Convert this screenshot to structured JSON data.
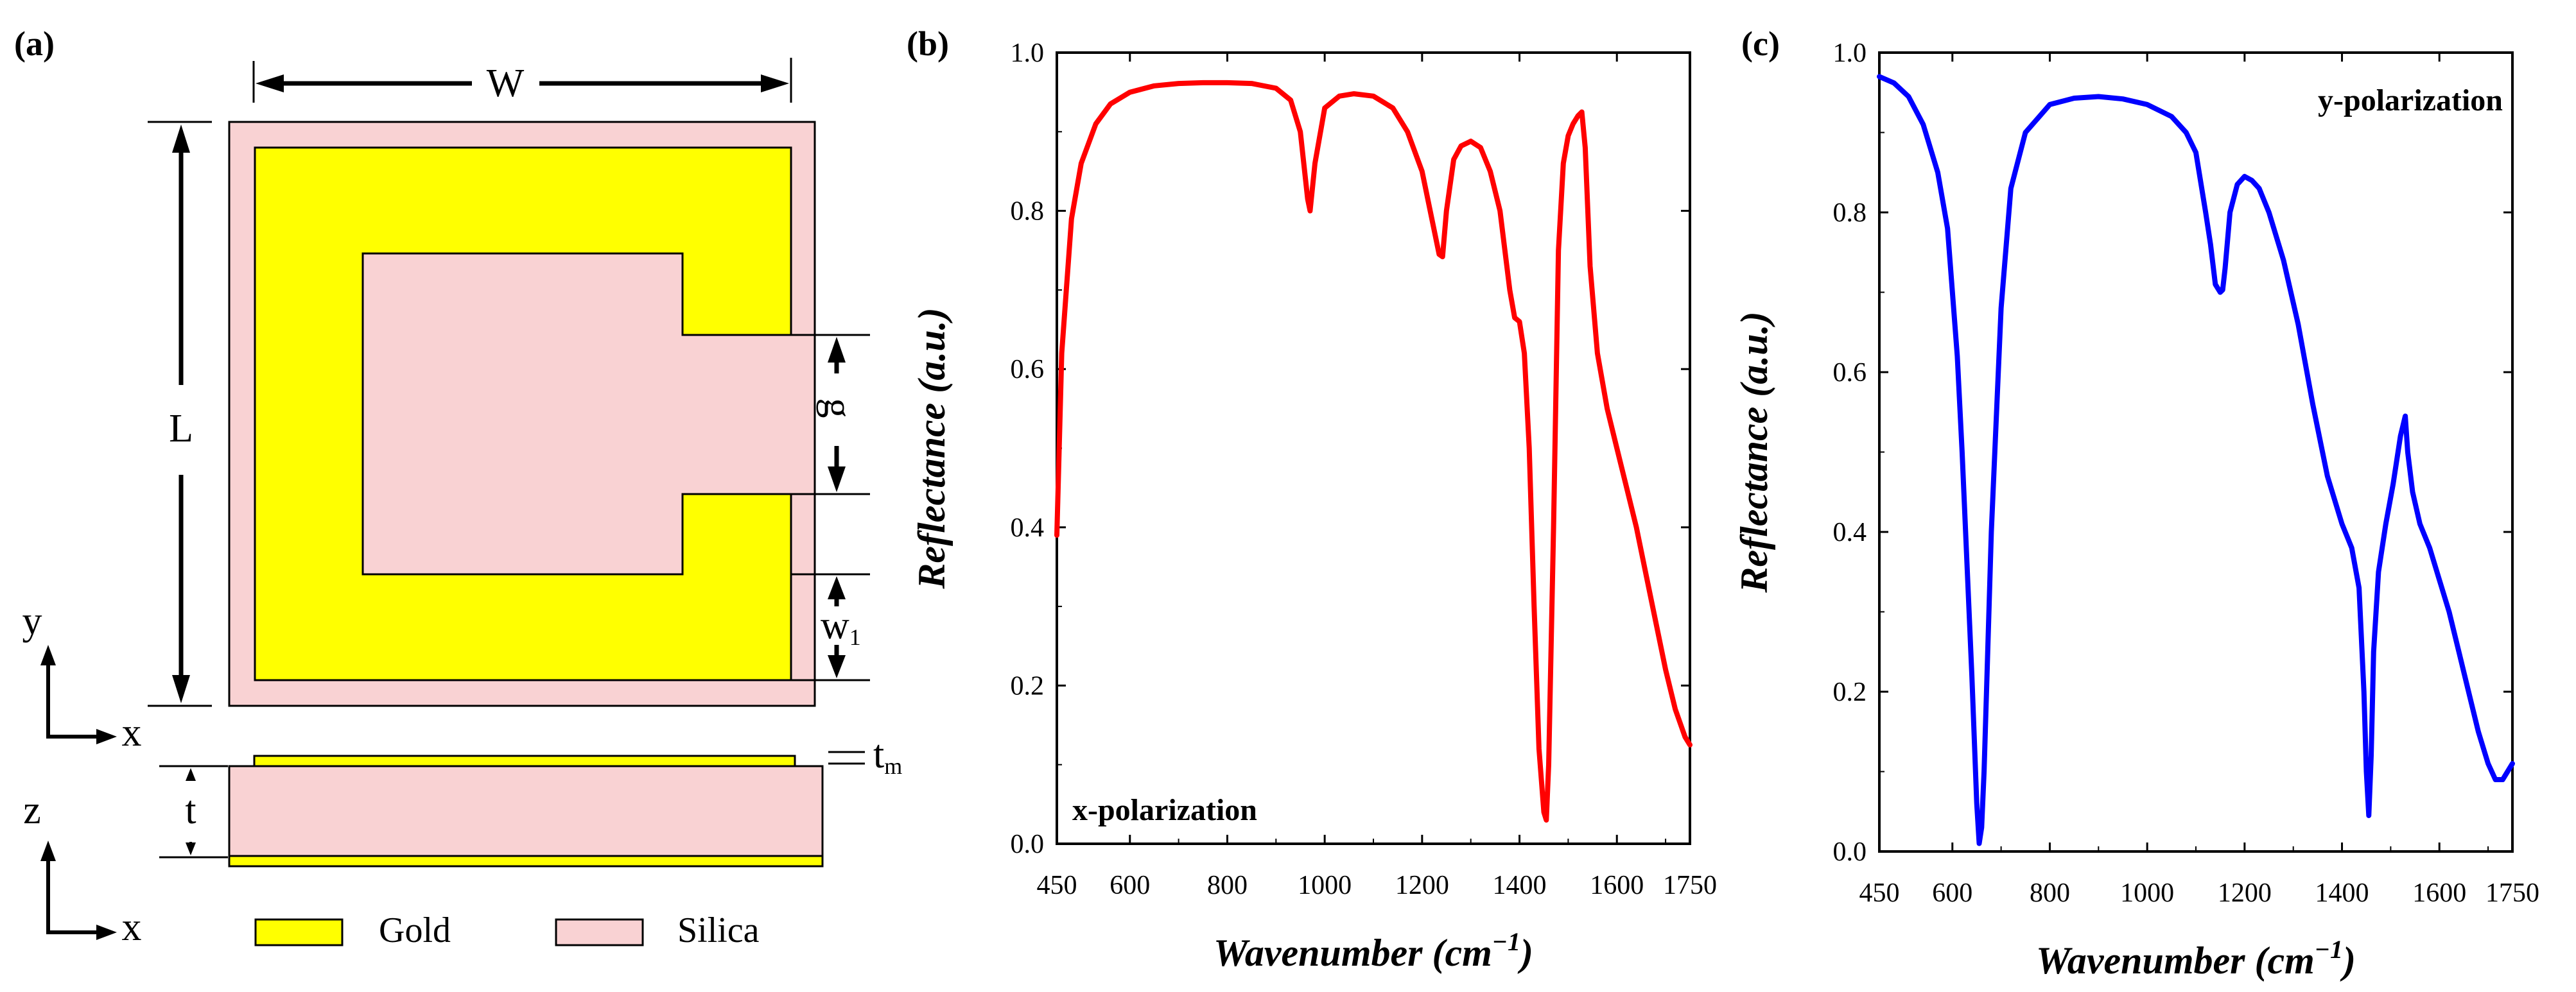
{
  "panel_a": {
    "label": "(a)",
    "dims": {
      "W": "W",
      "L": "L",
      "g": "g",
      "w1_base": "w",
      "w1_sub": "1",
      "t": "t",
      "tm_base": "t",
      "tm_sub": "m"
    },
    "axes_top": {
      "y": "y",
      "x": "x"
    },
    "axes_bottom": {
      "z": "z",
      "x": "x"
    },
    "legend": [
      {
        "label": "Gold",
        "color": "#FFFF00"
      },
      {
        "label": "Silica",
        "color": "#F9D2D3"
      }
    ]
  },
  "chart_data": [
    {
      "panel_label": "(b)",
      "type": "line",
      "polarization_label": "x-polarization",
      "xlabel_text": "Wavenumber (cm",
      "xlabel_sup": "−1",
      "xlabel_close": ")",
      "ylabel": "Reflectance (a.u.)",
      "xlim": [
        450,
        1750
      ],
      "ylim": [
        0,
        1.0
      ],
      "xticks": [
        450,
        600,
        800,
        1000,
        1200,
        1400,
        1600,
        1750
      ],
      "yticks": [
        "0.0",
        "0.2",
        "0.4",
        "0.6",
        "0.8",
        "1.0"
      ],
      "series": [
        {
          "name": "x-polarization",
          "color": "#FF0000",
          "x": [
            450,
            460,
            480,
            500,
            530,
            560,
            600,
            650,
            700,
            750,
            800,
            850,
            900,
            930,
            950,
            965,
            970,
            980,
            1000,
            1030,
            1060,
            1100,
            1140,
            1170,
            1200,
            1220,
            1235,
            1242,
            1250,
            1265,
            1280,
            1300,
            1320,
            1340,
            1360,
            1380,
            1390,
            1400,
            1410,
            1420,
            1430,
            1440,
            1450,
            1455,
            1460,
            1470,
            1480,
            1490,
            1500,
            1510,
            1520,
            1528,
            1535,
            1545,
            1560,
            1580,
            1600,
            1620,
            1640,
            1660,
            1680,
            1700,
            1720,
            1740,
            1750
          ],
          "y": [
            0.39,
            0.62,
            0.79,
            0.86,
            0.91,
            0.935,
            0.95,
            0.958,
            0.961,
            0.962,
            0.962,
            0.961,
            0.955,
            0.94,
            0.9,
            0.815,
            0.8,
            0.86,
            0.93,
            0.945,
            0.948,
            0.945,
            0.93,
            0.9,
            0.85,
            0.79,
            0.745,
            0.742,
            0.8,
            0.865,
            0.882,
            0.888,
            0.88,
            0.85,
            0.8,
            0.7,
            0.665,
            0.66,
            0.62,
            0.5,
            0.3,
            0.12,
            0.04,
            0.03,
            0.1,
            0.4,
            0.75,
            0.86,
            0.895,
            0.91,
            0.92,
            0.925,
            0.88,
            0.73,
            0.62,
            0.55,
            0.5,
            0.45,
            0.4,
            0.34,
            0.28,
            0.22,
            0.17,
            0.135,
            0.125
          ]
        }
      ]
    },
    {
      "panel_label": "(c)",
      "type": "line",
      "polarization_label": "y-polarization",
      "xlabel_text": "Wavenumber (cm",
      "xlabel_sup": "−1",
      "xlabel_close": ")",
      "ylabel": "Reflectance (a.u.)",
      "xlim": [
        450,
        1750
      ],
      "ylim": [
        0,
        1.0
      ],
      "xticks": [
        450,
        600,
        800,
        1000,
        1200,
        1400,
        1600,
        1750
      ],
      "yticks": [
        "0.0",
        "0.2",
        "0.4",
        "0.6",
        "0.8",
        "1.0"
      ],
      "series": [
        {
          "name": "y-polarization",
          "color": "#0000FF",
          "x": [
            450,
            480,
            510,
            540,
            570,
            590,
            610,
            620,
            630,
            640,
            645,
            650,
            655,
            660,
            665,
            670,
            680,
            700,
            720,
            750,
            800,
            850,
            900,
            950,
            1000,
            1050,
            1080,
            1100,
            1120,
            1130,
            1140,
            1150,
            1155,
            1160,
            1170,
            1185,
            1200,
            1215,
            1230,
            1250,
            1280,
            1310,
            1340,
            1370,
            1400,
            1420,
            1435,
            1445,
            1450,
            1455,
            1460,
            1465,
            1475,
            1490,
            1505,
            1520,
            1530,
            1535,
            1545,
            1560,
            1580,
            1600,
            1620,
            1640,
            1660,
            1680,
            1700,
            1715,
            1730,
            1750
          ],
          "y": [
            0.97,
            0.962,
            0.945,
            0.91,
            0.85,
            0.78,
            0.62,
            0.5,
            0.36,
            0.22,
            0.14,
            0.06,
            0.01,
            0.03,
            0.1,
            0.2,
            0.4,
            0.68,
            0.83,
            0.9,
            0.935,
            0.943,
            0.945,
            0.942,
            0.935,
            0.92,
            0.9,
            0.875,
            0.8,
            0.76,
            0.71,
            0.7,
            0.703,
            0.73,
            0.8,
            0.835,
            0.845,
            0.84,
            0.83,
            0.8,
            0.74,
            0.66,
            0.56,
            0.47,
            0.41,
            0.38,
            0.33,
            0.2,
            0.1,
            0.045,
            0.12,
            0.25,
            0.35,
            0.41,
            0.46,
            0.52,
            0.545,
            0.5,
            0.45,
            0.41,
            0.38,
            0.34,
            0.3,
            0.25,
            0.2,
            0.15,
            0.11,
            0.09,
            0.09,
            0.11
          ]
        }
      ]
    }
  ]
}
